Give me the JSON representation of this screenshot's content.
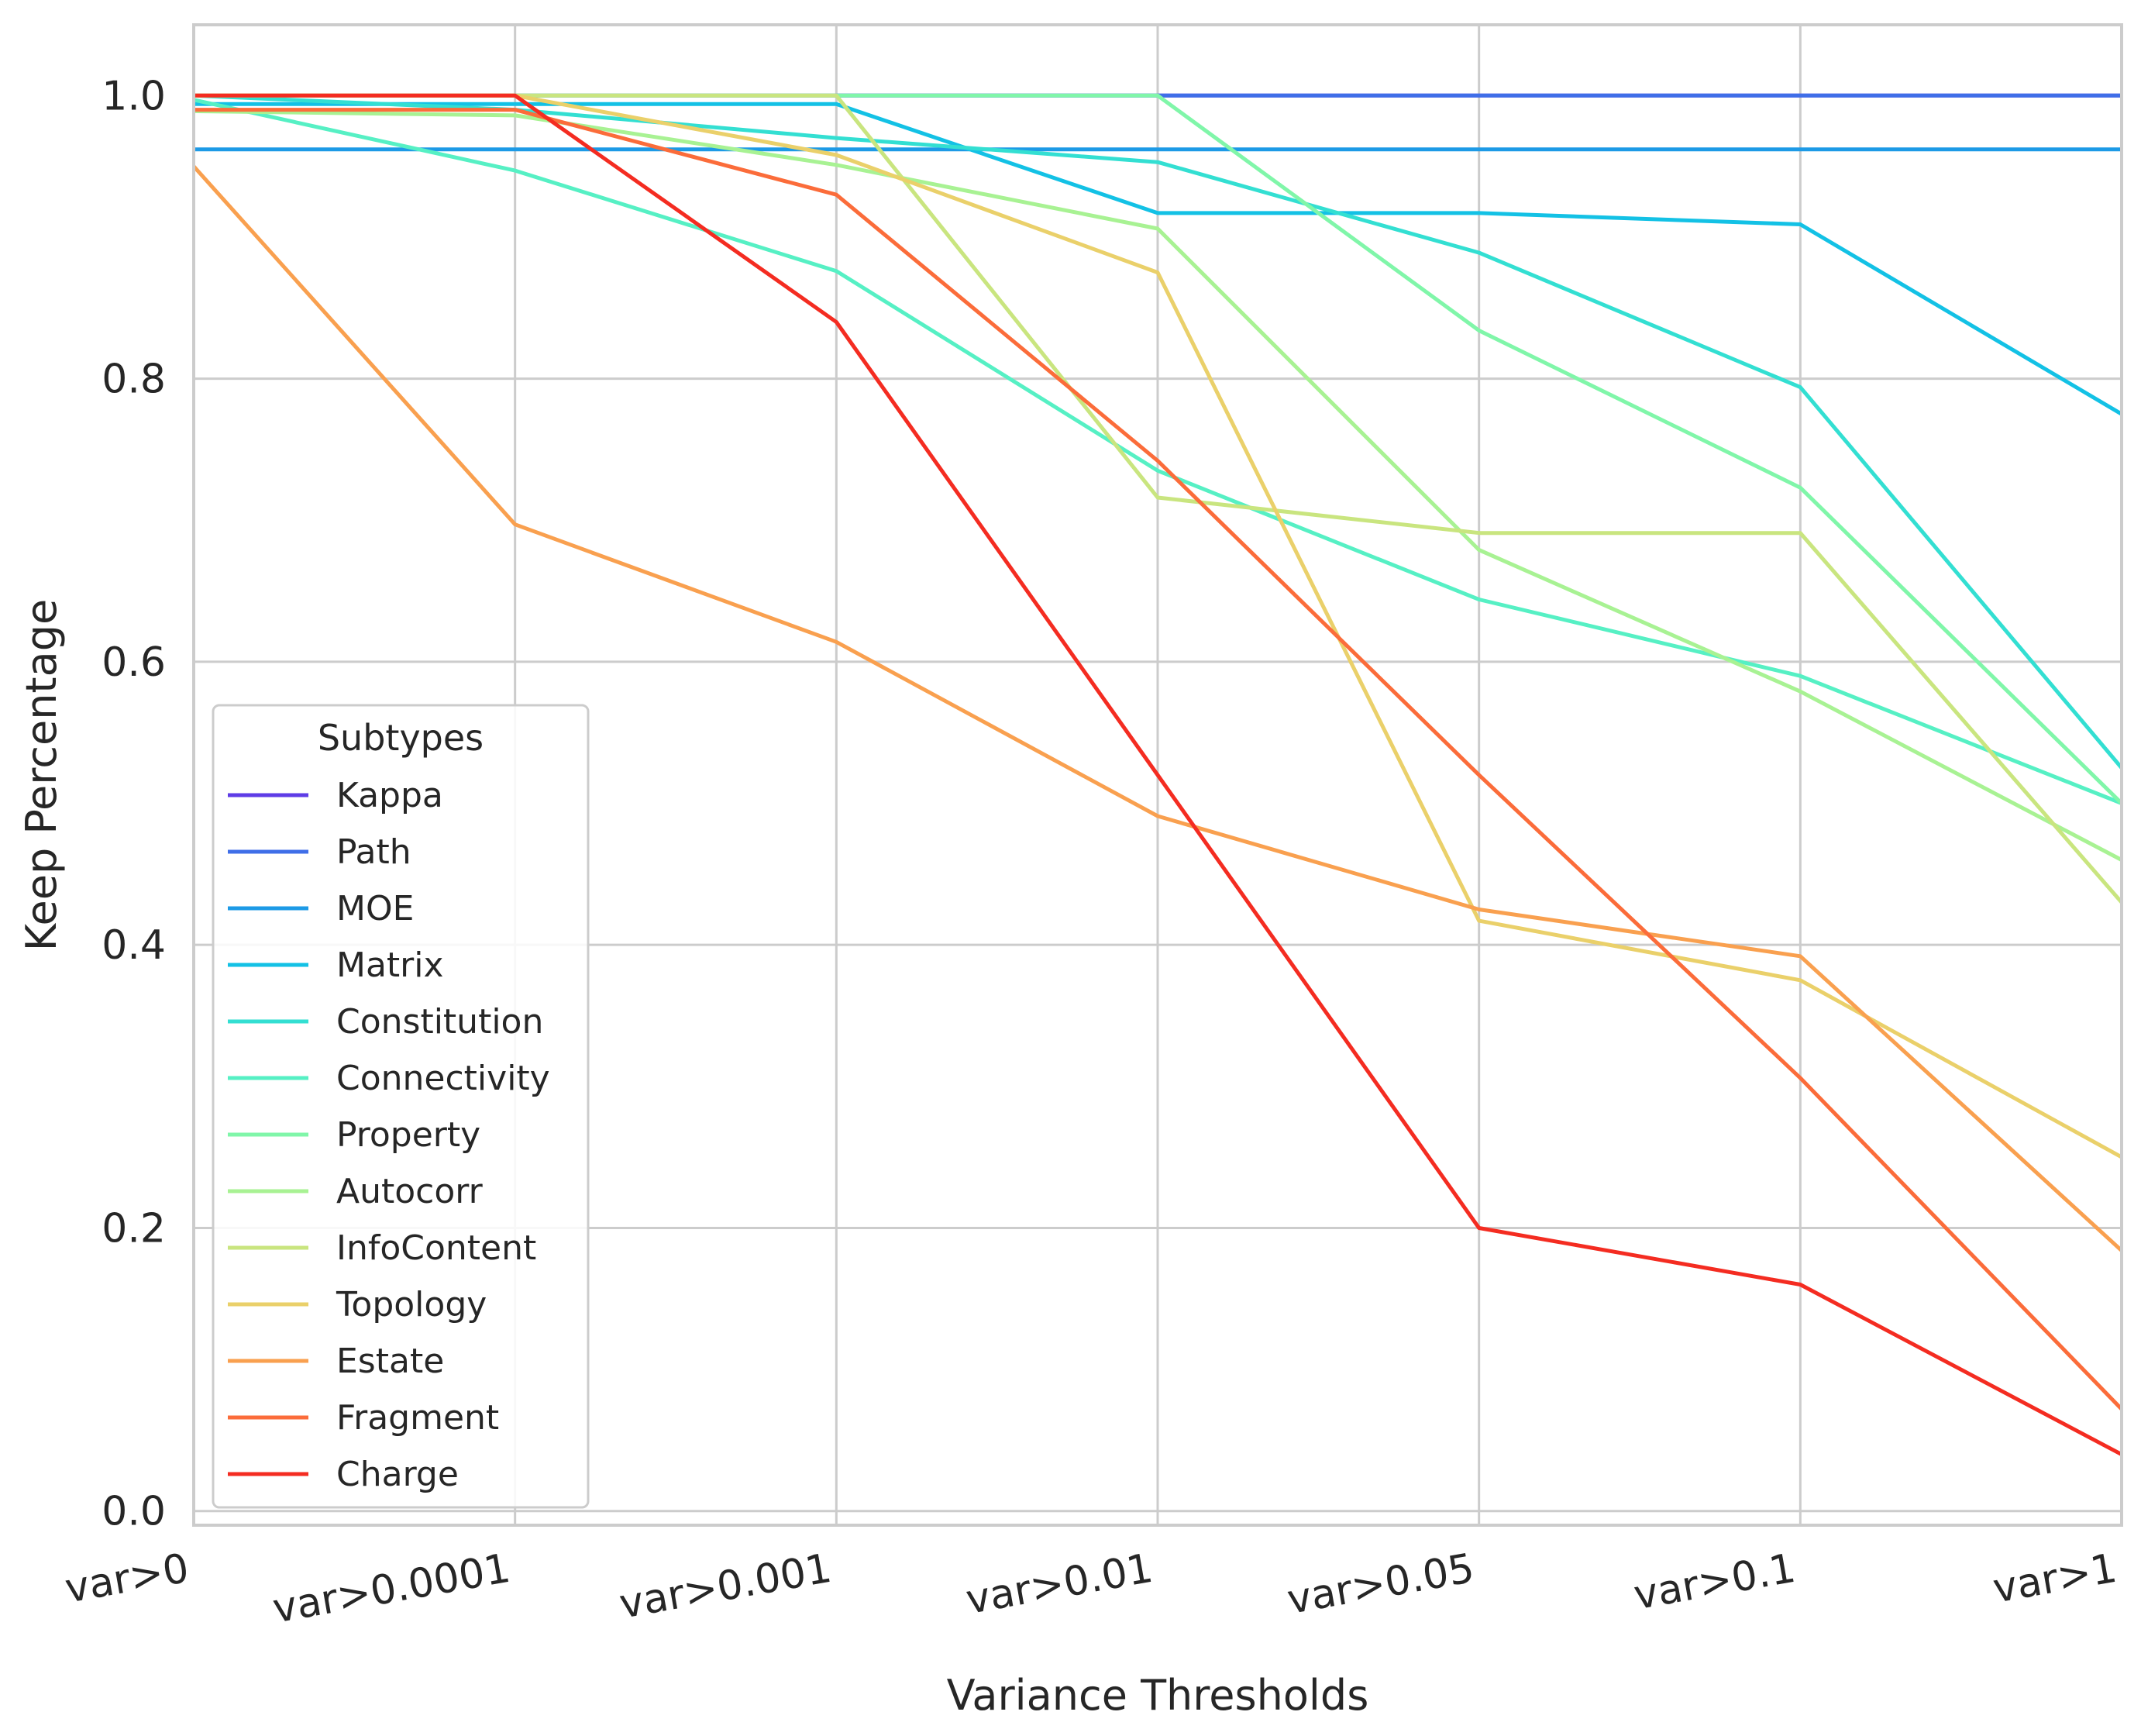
{
  "chart_data": {
    "type": "line",
    "xlabel": "Variance Thresholds",
    "ylabel": "Keep Percentage",
    "categories": [
      "var>0",
      "var>0.0001",
      "var>0.001",
      "var>0.01",
      "var>0.05",
      "var>0.1",
      "var>1"
    ],
    "ylim": [
      -0.01,
      1.05
    ],
    "yticks": [
      0.0,
      0.2,
      0.4,
      0.6,
      0.8,
      1.0
    ],
    "ytick_labels": [
      "0.0",
      "0.2",
      "0.4",
      "0.6",
      "0.8",
      "1.0"
    ],
    "grid": true,
    "legend": {
      "title": "Subtypes",
      "placement": "lower-left"
    },
    "series": [
      {
        "name": "Kappa",
        "color": "#5e3ce6",
        "values": [
          1.0,
          1.0,
          1.0,
          1.0,
          1.0,
          1.0,
          1.0
        ]
      },
      {
        "name": "Path",
        "color": "#3f6ee8",
        "values": [
          1.0,
          1.0,
          1.0,
          1.0,
          1.0,
          1.0,
          1.0
        ]
      },
      {
        "name": "MOE",
        "color": "#1d9ae6",
        "values": [
          0.962,
          0.962,
          0.962,
          0.962,
          0.962,
          0.962,
          0.962
        ]
      },
      {
        "name": "Matrix",
        "color": "#13c1e5",
        "values": [
          0.994,
          0.994,
          0.994,
          0.917,
          0.917,
          0.909,
          0.775
        ]
      },
      {
        "name": "Constitution",
        "color": "#33dfd2",
        "values": [
          1.0,
          0.99,
          0.97,
          0.953,
          0.889,
          0.794,
          0.525
        ]
      },
      {
        "name": "Connectivity",
        "color": "#56f0c4",
        "values": [
          0.997,
          0.947,
          0.876,
          0.735,
          0.644,
          0.59,
          0.5
        ]
      },
      {
        "name": "Property",
        "color": "#80f6a9",
        "values": [
          1.0,
          1.0,
          1.0,
          1.0,
          0.834,
          0.723,
          0.5
        ]
      },
      {
        "name": "Autocorr",
        "color": "#a8f293",
        "values": [
          0.989,
          0.986,
          0.951,
          0.906,
          0.679,
          0.579,
          0.46
        ]
      },
      {
        "name": "InfoContent",
        "color": "#c9e57f",
        "values": [
          1.0,
          1.0,
          1.0,
          0.716,
          0.691,
          0.691,
          0.43
        ]
      },
      {
        "name": "Topology",
        "color": "#ead06a",
        "values": [
          1.0,
          1.0,
          0.958,
          0.875,
          0.417,
          0.375,
          0.25
        ]
      },
      {
        "name": "Estate",
        "color": "#f9a04f",
        "values": [
          0.95,
          0.697,
          0.614,
          0.491,
          0.425,
          0.392,
          0.184
        ]
      },
      {
        "name": "Fragment",
        "color": "#fb6c3a",
        "values": [
          0.99,
          0.99,
          0.93,
          0.742,
          0.52,
          0.306,
          0.072
        ]
      },
      {
        "name": "Charge",
        "color": "#f42c21",
        "values": [
          1.0,
          1.0,
          0.84,
          0.52,
          0.2,
          0.16,
          0.04
        ]
      }
    ]
  }
}
